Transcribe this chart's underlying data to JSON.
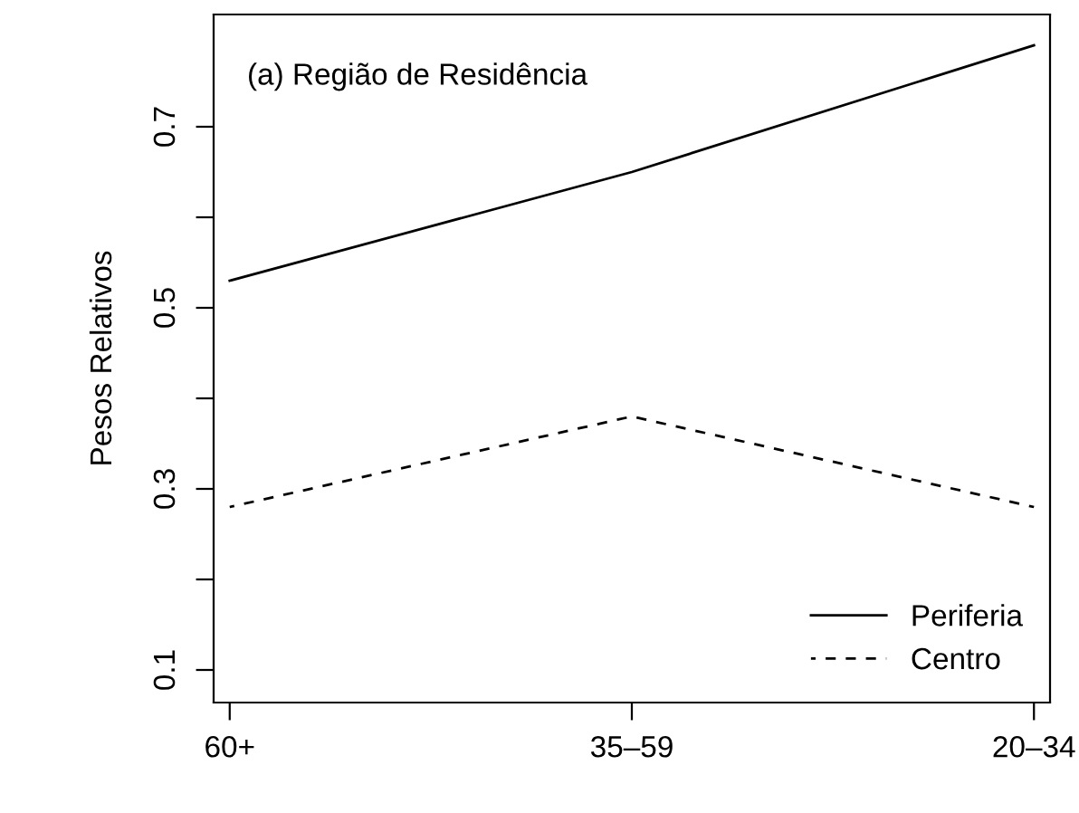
{
  "chart_data": {
    "type": "line",
    "title": "(a) Região de Residência",
    "ylabel": "Pesos Relativos",
    "categories": [
      "60+",
      "35–59",
      "20–34"
    ],
    "series": [
      {
        "name": "Periferia",
        "color": "#000000",
        "line_style": "solid",
        "values": [
          0.53,
          0.65,
          0.79
        ]
      },
      {
        "name": "Centro",
        "color": "#000000",
        "line_style": "dashed",
        "values": [
          0.28,
          0.38,
          0.28
        ]
      }
    ],
    "ylim": [
      0.064,
      0.824
    ],
    "yticks": [
      0.1,
      {
        "value": 0.2,
        "label": null
      },
      0.3,
      {
        "value": 0.4,
        "label": null
      },
      0.5,
      {
        "value": 0.6,
        "label": null
      },
      0.7
    ],
    "grid": false,
    "legend": "bottom right",
    "marker": "none"
  }
}
